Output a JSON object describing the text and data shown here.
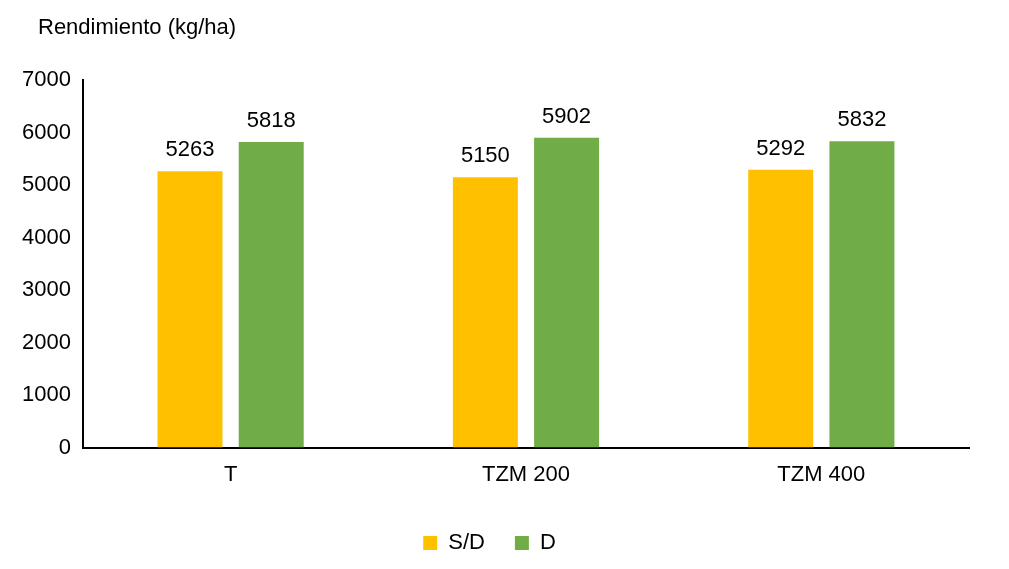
{
  "chart_data": {
    "type": "bar",
    "ylabel": "Rendimiento (kg/ha)",
    "categories": [
      "T",
      "TZM 200",
      "TZM 400"
    ],
    "series": [
      {
        "name": "S/D",
        "color": "#ffc000",
        "values": [
          5263,
          5150,
          5292
        ]
      },
      {
        "name": "D",
        "color": "#70ad47",
        "values": [
          5818,
          5902,
          5832
        ]
      }
    ],
    "ylim": [
      0,
      7000
    ],
    "yticks": [
      0,
      1000,
      2000,
      3000,
      4000,
      5000,
      6000,
      7000
    ],
    "grid": false,
    "legend": "bottom",
    "data_labels": true
  }
}
